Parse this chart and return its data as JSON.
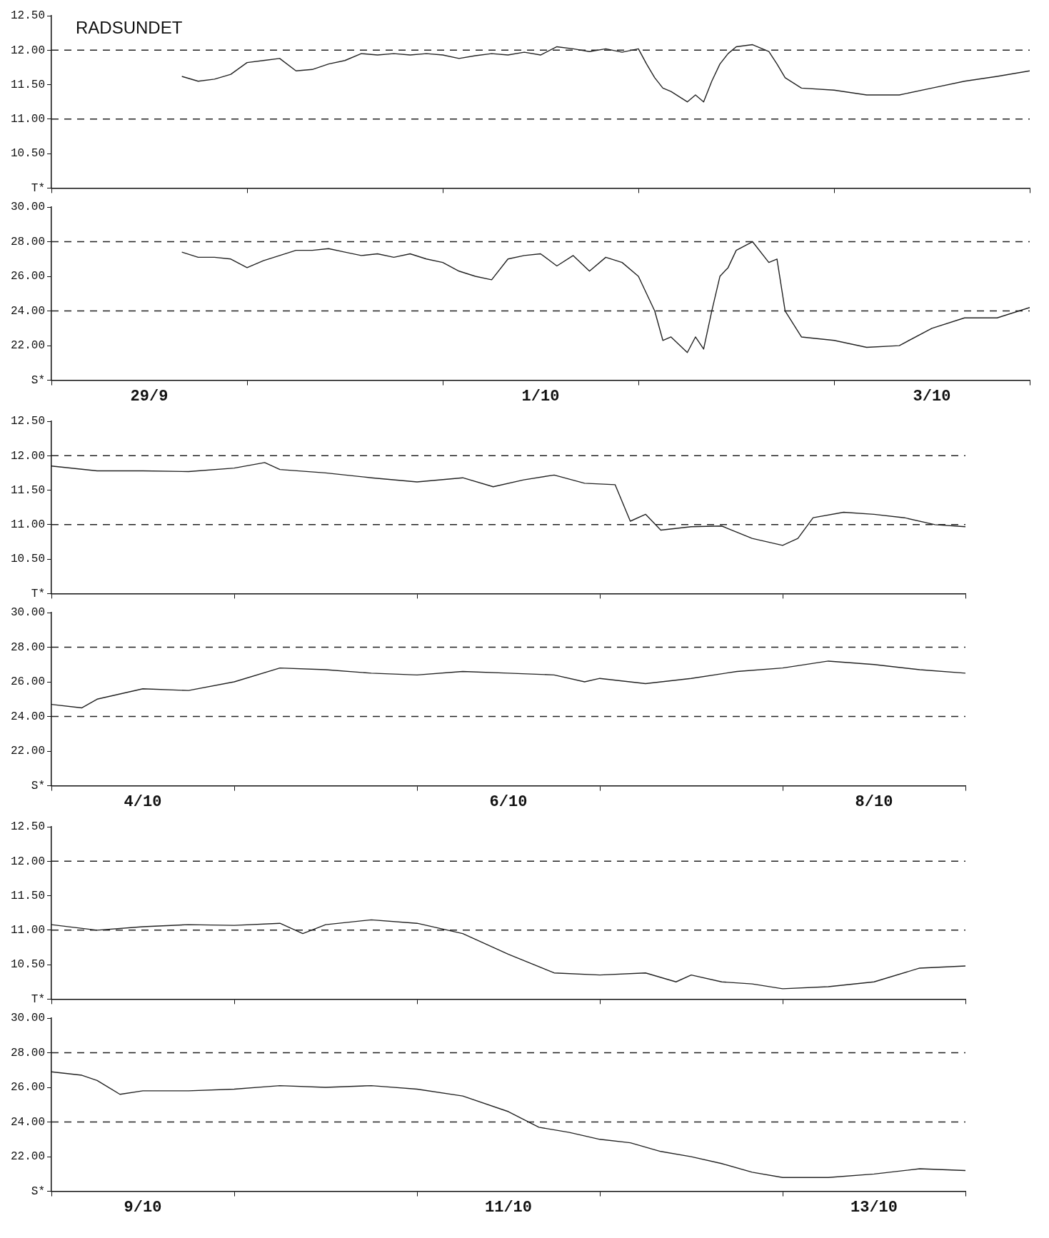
{
  "chart_data": [
    {
      "type": "line",
      "title": "RADSUNDET",
      "color": "#222222",
      "marker": "none",
      "tick_labels": "y",
      "x": [
        "--09-29T16:00",
        "--09-29T18:00",
        "--09-29T20:00",
        "--09-29T22:00",
        "--09-30T00:00",
        "--09-30T02:00",
        "--09-30T04:00",
        "--09-30T06:00",
        "--09-30T08:00",
        "--09-30T10:00",
        "--09-30T12:00",
        "--09-30T14:00",
        "--09-30T16:00",
        "--09-30T18:00",
        "--09-30T20:00",
        "--09-30T22:00",
        "--10-01T00:00",
        "--10-01T02:00",
        "--10-01T04:00",
        "--10-01T06:00",
        "--10-01T08:00",
        "--10-01T10:00",
        "--10-01T12:00",
        "--10-01T14:00",
        "--10-01T16:00",
        "--10-01T18:00",
        "--10-01T20:00",
        "--10-01T22:00",
        "--10-02T00:00",
        "--10-02T01:00",
        "--10-02T02:00",
        "--10-02T03:00",
        "--10-02T04:00",
        "--10-02T06:00",
        "--10-02T07:00",
        "--10-02T08:00",
        "--10-02T09:00",
        "--10-02T10:00",
        "--10-02T11:00",
        "--10-02T12:00",
        "--10-02T14:00",
        "--10-02T16:00",
        "--10-02T17:00",
        "--10-02T18:00",
        "--10-02T20:00",
        "--10-03T00:00",
        "--10-03T04:00",
        "--10-03T08:00",
        "--10-03T12:00",
        "--10-03T16:00",
        "--10-03T20:00",
        "--10-04T00:00"
      ],
      "values": [
        11.62,
        11.55,
        11.58,
        11.65,
        11.82,
        11.85,
        11.88,
        11.7,
        11.72,
        11.8,
        11.85,
        11.95,
        11.93,
        11.95,
        11.93,
        11.95,
        11.93,
        11.88,
        11.92,
        11.95,
        11.93,
        11.97,
        11.93,
        12.05,
        12.02,
        11.98,
        12.02,
        11.97,
        12.02,
        11.8,
        11.6,
        11.45,
        11.4,
        11.25,
        11.35,
        11.25,
        11.55,
        11.8,
        11.95,
        12.05,
        12.08,
        11.98,
        11.8,
        11.6,
        11.45,
        11.42,
        11.35,
        11.35,
        11.45,
        11.55,
        11.62,
        11.7
      ],
      "xlim": [
        "--09-29",
        "--10-04"
      ],
      "xticks": [
        {
          "value": "--09-29",
          "label": null
        },
        {
          "value": "--09-30",
          "label": null
        },
        {
          "value": "--10-01",
          "label": null
        },
        {
          "value": "--10-02",
          "label": null
        },
        {
          "value": "--10-03",
          "label": null
        },
        {
          "value": "--10-04",
          "label": null
        }
      ],
      "ylim": [
        10,
        12.5
      ],
      "yticks": [
        {
          "value": 10,
          "label": "T*"
        },
        {
          "value": 10.5,
          "label": "10.50"
        },
        {
          "value": 11,
          "label": "11.00"
        },
        {
          "value": 11.5,
          "label": "11.50"
        },
        {
          "value": 12,
          "label": "12.00"
        },
        {
          "value": 12.5,
          "label": "12.50"
        }
      ],
      "ref_lines": [
        {
          "axis": "y",
          "value": 12,
          "line_style": "dashed",
          "color": "#222222"
        },
        {
          "axis": "y",
          "value": 11,
          "line_style": "dashed",
          "color": "#222222"
        }
      ]
    },
    {
      "type": "line",
      "color": "#222222",
      "marker": "none",
      "x": [
        "--09-29T16:00",
        "--09-29T18:00",
        "--09-29T20:00",
        "--09-29T22:00",
        "--09-30T00:00",
        "--09-30T02:00",
        "--09-30T04:00",
        "--09-30T06:00",
        "--09-30T08:00",
        "--09-30T10:00",
        "--09-30T12:00",
        "--09-30T14:00",
        "--09-30T16:00",
        "--09-30T18:00",
        "--09-30T20:00",
        "--09-30T22:00",
        "--10-01T00:00",
        "--10-01T02:00",
        "--10-01T04:00",
        "--10-01T06:00",
        "--10-01T08:00",
        "--10-01T10:00",
        "--10-01T12:00",
        "--10-01T14:00",
        "--10-01T16:00",
        "--10-01T18:00",
        "--10-01T20:00",
        "--10-01T22:00",
        "--10-02T00:00",
        "--10-02T01:00",
        "--10-02T02:00",
        "--10-02T03:00",
        "--10-02T04:00",
        "--10-02T06:00",
        "--10-02T07:00",
        "--10-02T08:00",
        "--10-02T09:00",
        "--10-02T10:00",
        "--10-02T11:00",
        "--10-02T12:00",
        "--10-02T14:00",
        "--10-02T16:00",
        "--10-02T17:00",
        "--10-02T18:00",
        "--10-02T20:00",
        "--10-03T00:00",
        "--10-03T04:00",
        "--10-03T08:00",
        "--10-03T12:00",
        "--10-03T16:00",
        "--10-03T20:00",
        "--10-04T00:00"
      ],
      "values": [
        27.4,
        27.1,
        27.1,
        27.0,
        26.5,
        26.9,
        27.2,
        27.5,
        27.5,
        27.6,
        27.4,
        27.2,
        27.3,
        27.1,
        27.3,
        27.0,
        26.8,
        26.3,
        26.0,
        25.8,
        27.0,
        27.2,
        27.3,
        26.6,
        27.2,
        26.3,
        27.1,
        26.8,
        26.0,
        25.0,
        24.0,
        22.3,
        22.5,
        21.6,
        22.5,
        21.8,
        24.0,
        26.0,
        26.5,
        27.5,
        28.0,
        26.8,
        27.0,
        24.0,
        22.5,
        22.3,
        21.9,
        22.0,
        23.0,
        23.6,
        23.6,
        24.2
      ],
      "xlim": [
        "--09-29",
        "--10-04"
      ],
      "xticks": [
        {
          "value": "--09-29",
          "label": null
        },
        {
          "value": "--09-29T12:00",
          "label": "29/9"
        },
        {
          "value": "--09-30",
          "label": null
        },
        {
          "value": "--10-01",
          "label": null
        },
        {
          "value": "--10-01T12:00",
          "label": "1/10"
        },
        {
          "value": "--10-02",
          "label": null
        },
        {
          "value": "--10-03",
          "label": null
        },
        {
          "value": "--10-03T12:00",
          "label": "3/10"
        },
        {
          "value": "--10-04",
          "label": null
        }
      ],
      "ylim": [
        20,
        30
      ],
      "yticks": [
        {
          "value": 20,
          "label": "S*"
        },
        {
          "value": 22,
          "label": "22.00"
        },
        {
          "value": 24,
          "label": "24.00"
        },
        {
          "value": 26,
          "label": "26.00"
        },
        {
          "value": 28,
          "label": "28.00"
        },
        {
          "value": 30,
          "label": "30.00"
        }
      ],
      "ref_lines": [
        {
          "axis": "y",
          "value": 28,
          "line_style": "dashed",
          "color": "#222222"
        },
        {
          "axis": "y",
          "value": 24,
          "line_style": "dashed",
          "color": "#222222"
        }
      ]
    },
    {
      "type": "line",
      "color": "#222222",
      "marker": "none",
      "tick_labels": "y",
      "x": [
        "--10-04T00:00",
        "--10-04T06:00",
        "--10-04T12:00",
        "--10-04T18:00",
        "--10-05T00:00",
        "--10-05T04:00",
        "--10-05T06:00",
        "--10-05T12:00",
        "--10-05T18:00",
        "--10-06T00:00",
        "--10-06T06:00",
        "--10-06T10:00",
        "--10-06T14:00",
        "--10-06T18:00",
        "--10-06T22:00",
        "--10-07T02:00",
        "--10-07T04:00",
        "--10-07T06:00",
        "--10-07T08:00",
        "--10-07T12:00",
        "--10-07T16:00",
        "--10-07T20:00",
        "--10-08T00:00",
        "--10-08T02:00",
        "--10-08T04:00",
        "--10-08T08:00",
        "--10-08T12:00",
        "--10-08T16:00",
        "--10-08T20:00",
        "--10-09T00:00"
      ],
      "values": [
        11.85,
        11.78,
        11.78,
        11.77,
        11.82,
        11.9,
        11.8,
        11.75,
        11.68,
        11.62,
        11.68,
        11.55,
        11.65,
        11.72,
        11.6,
        11.58,
        11.05,
        11.15,
        10.92,
        10.97,
        10.98,
        10.8,
        10.7,
        10.8,
        11.1,
        11.18,
        11.15,
        11.1,
        11.0,
        10.97
      ],
      "xlim": [
        "--10-04",
        "--10-09"
      ],
      "xticks": [
        {
          "value": "--10-04",
          "label": null
        },
        {
          "value": "--10-05",
          "label": null
        },
        {
          "value": "--10-06",
          "label": null
        },
        {
          "value": "--10-07",
          "label": null
        },
        {
          "value": "--10-08",
          "label": null
        },
        {
          "value": "--10-09",
          "label": null
        }
      ],
      "ylim": [
        10,
        12.5
      ],
      "yticks": [
        {
          "value": 10,
          "label": "T*"
        },
        {
          "value": 10.5,
          "label": "10.50"
        },
        {
          "value": 11,
          "label": "11.00"
        },
        {
          "value": 11.5,
          "label": "11.50"
        },
        {
          "value": 12,
          "label": "12.00"
        },
        {
          "value": 12.5,
          "label": "12.50"
        }
      ],
      "ref_lines": [
        {
          "axis": "y",
          "value": 12,
          "line_style": "dashed",
          "color": "#222222"
        },
        {
          "axis": "y",
          "value": 11,
          "line_style": "dashed",
          "color": "#222222"
        }
      ]
    },
    {
      "type": "line",
      "color": "#222222",
      "marker": "none",
      "x": [
        "--10-04T00:00",
        "--10-04T04:00",
        "--10-04T06:00",
        "--10-04T12:00",
        "--10-04T18:00",
        "--10-05T00:00",
        "--10-05T06:00",
        "--10-05T12:00",
        "--10-05T18:00",
        "--10-06T00:00",
        "--10-06T06:00",
        "--10-06T12:00",
        "--10-06T18:00",
        "--10-06T22:00",
        "--10-07T00:00",
        "--10-07T06:00",
        "--10-07T12:00",
        "--10-07T18:00",
        "--10-08T00:00",
        "--10-08T06:00",
        "--10-08T12:00",
        "--10-08T18:00",
        "--10-09T00:00"
      ],
      "values": [
        24.7,
        24.5,
        25.0,
        25.6,
        25.5,
        26.0,
        26.8,
        26.7,
        26.5,
        26.4,
        26.6,
        26.5,
        26.4,
        26.0,
        26.2,
        25.9,
        26.2,
        26.6,
        26.8,
        27.2,
        27.0,
        26.7,
        26.5
      ],
      "xlim": [
        "--10-04",
        "--10-09"
      ],
      "xticks": [
        {
          "value": "--10-04",
          "label": null
        },
        {
          "value": "--10-04T12:00",
          "label": "4/10"
        },
        {
          "value": "--10-05",
          "label": null
        },
        {
          "value": "--10-06",
          "label": null
        },
        {
          "value": "--10-06T12:00",
          "label": "6/10"
        },
        {
          "value": "--10-07",
          "label": null
        },
        {
          "value": "--10-08",
          "label": null
        },
        {
          "value": "--10-08T12:00",
          "label": "8/10"
        },
        {
          "value": "--10-09",
          "label": null
        }
      ],
      "ylim": [
        20,
        30
      ],
      "yticks": [
        {
          "value": 20,
          "label": "S*"
        },
        {
          "value": 22,
          "label": "22.00"
        },
        {
          "value": 24,
          "label": "24.00"
        },
        {
          "value": 26,
          "label": "26.00"
        },
        {
          "value": 28,
          "label": "28.00"
        },
        {
          "value": 30,
          "label": "30.00"
        }
      ],
      "ref_lines": [
        {
          "axis": "y",
          "value": 28,
          "line_style": "dashed",
          "color": "#222222"
        },
        {
          "axis": "y",
          "value": 24,
          "line_style": "dashed",
          "color": "#222222"
        }
      ]
    },
    {
      "type": "line",
      "color": "#222222",
      "marker": "none",
      "tick_labels": "y",
      "x": [
        "--10-09T00:00",
        "--10-09T06:00",
        "--10-09T12:00",
        "--10-09T18:00",
        "--10-10T00:00",
        "--10-10T06:00",
        "--10-10T09:00",
        "--10-10T12:00",
        "--10-10T18:00",
        "--10-11T00:00",
        "--10-11T06:00",
        "--10-11T12:00",
        "--10-11T18:00",
        "--10-12T00:00",
        "--10-12T06:00",
        "--10-12T10:00",
        "--10-12T12:00",
        "--10-12T16:00",
        "--10-12T20:00",
        "--10-13T00:00",
        "--10-13T06:00",
        "--10-13T12:00",
        "--10-13T18:00",
        "--10-14T00:00"
      ],
      "values": [
        11.08,
        11.0,
        11.05,
        11.08,
        11.07,
        11.1,
        10.95,
        11.08,
        11.15,
        11.1,
        10.95,
        10.65,
        10.38,
        10.35,
        10.38,
        10.25,
        10.35,
        10.25,
        10.22,
        10.15,
        10.18,
        10.25,
        10.45,
        10.48
      ],
      "xlim": [
        "--10-09",
        "--10-14"
      ],
      "xticks": [
        {
          "value": "--10-09",
          "label": null
        },
        {
          "value": "--10-10",
          "label": null
        },
        {
          "value": "--10-11",
          "label": null
        },
        {
          "value": "--10-12",
          "label": null
        },
        {
          "value": "--10-13",
          "label": null
        },
        {
          "value": "--10-14",
          "label": null
        }
      ],
      "ylim": [
        10,
        12.5
      ],
      "yticks": [
        {
          "value": 10,
          "label": "T*"
        },
        {
          "value": 10.5,
          "label": "10.50"
        },
        {
          "value": 11,
          "label": "11.00"
        },
        {
          "value": 11.5,
          "label": "11.50"
        },
        {
          "value": 12,
          "label": "12.00"
        },
        {
          "value": 12.5,
          "label": "12.50"
        }
      ],
      "ref_lines": [
        {
          "axis": "y",
          "value": 12,
          "line_style": "dashed",
          "color": "#222222"
        },
        {
          "axis": "y",
          "value": 11,
          "line_style": "dashed",
          "color": "#222222"
        }
      ]
    },
    {
      "type": "line",
      "color": "#222222",
      "marker": "none",
      "x": [
        "--10-09T00:00",
        "--10-09T04:00",
        "--10-09T06:00",
        "--10-09T09:00",
        "--10-09T12:00",
        "--10-09T18:00",
        "--10-10T00:00",
        "--10-10T06:00",
        "--10-10T12:00",
        "--10-10T18:00",
        "--10-11T00:00",
        "--10-11T06:00",
        "--10-11T12:00",
        "--10-11T16:00",
        "--10-11T20:00",
        "--10-12T00:00",
        "--10-12T04:00",
        "--10-12T08:00",
        "--10-12T12:00",
        "--10-12T16:00",
        "--10-12T20:00",
        "--10-13T00:00",
        "--10-13T06:00",
        "--10-13T12:00",
        "--10-13T18:00",
        "--10-14T00:00"
      ],
      "values": [
        26.9,
        26.7,
        26.4,
        25.6,
        25.8,
        25.8,
        25.9,
        26.1,
        26.0,
        26.1,
        25.9,
        25.5,
        24.6,
        23.7,
        23.4,
        23.0,
        22.8,
        22.3,
        22.0,
        21.6,
        21.1,
        20.8,
        20.8,
        21.0,
        21.3,
        21.2
      ],
      "xlim": [
        "--10-09",
        "--10-14"
      ],
      "xticks": [
        {
          "value": "--10-09",
          "label": null
        },
        {
          "value": "--10-09T12:00",
          "label": "9/10"
        },
        {
          "value": "--10-10",
          "label": null
        },
        {
          "value": "--10-11",
          "label": null
        },
        {
          "value": "--10-11T12:00",
          "label": "11/10"
        },
        {
          "value": "--10-12",
          "label": null
        },
        {
          "value": "--10-13",
          "label": null
        },
        {
          "value": "--10-13T12:00",
          "label": "13/10"
        },
        {
          "value": "--10-14",
          "label": null
        }
      ],
      "ylim": [
        20,
        30
      ],
      "yticks": [
        {
          "value": 20,
          "label": "S*"
        },
        {
          "value": 22,
          "label": "22.00"
        },
        {
          "value": 24,
          "label": "24.00"
        },
        {
          "value": 26,
          "label": "26.00"
        },
        {
          "value": 28,
          "label": "28.00"
        },
        {
          "value": 30,
          "label": "30.00"
        }
      ],
      "ref_lines": [
        {
          "axis": "y",
          "value": 28,
          "line_style": "dashed",
          "color": "#222222"
        },
        {
          "axis": "y",
          "value": 24,
          "line_style": "dashed",
          "color": "#222222"
        }
      ]
    }
  ]
}
